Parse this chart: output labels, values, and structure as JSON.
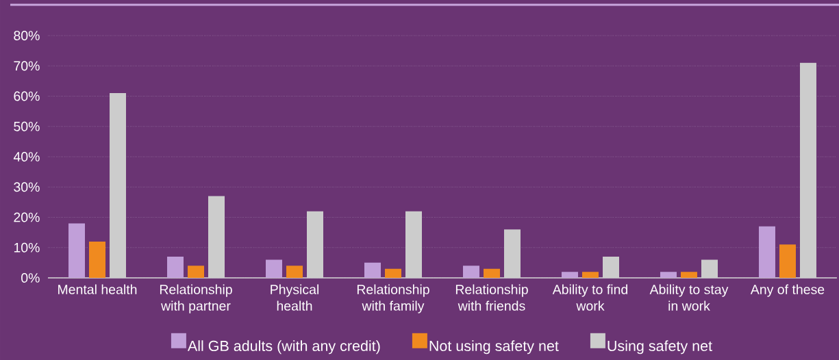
{
  "chart_data": {
    "type": "bar",
    "categories": [
      "Mental health",
      "Relationship with partner",
      "Physical health",
      "Relationship with family",
      "Relationship with friends",
      "Ability to find work",
      "Ability to stay in work",
      "Any of these"
    ],
    "series": [
      {
        "name": "All GB adults (with any credit)",
        "color": "#c19fd9",
        "values": [
          18,
          7,
          6,
          5,
          4,
          2,
          2,
          17
        ]
      },
      {
        "name": "Not using safety net",
        "color": "#f08a1f",
        "values": [
          12,
          4,
          4,
          3,
          3,
          2,
          2,
          11
        ]
      },
      {
        "name": "Using safety net",
        "color": "#cccccc",
        "values": [
          61,
          27,
          22,
          22,
          16,
          7,
          6,
          71
        ]
      }
    ],
    "ylim": [
      0,
      80
    ],
    "yticks": [
      {
        "value": 0,
        "label": "0%"
      },
      {
        "value": 10,
        "label": "10%"
      },
      {
        "value": 20,
        "label": "20%"
      },
      {
        "value": 30,
        "label": "30%"
      },
      {
        "value": 40,
        "label": "40%"
      },
      {
        "value": 50,
        "label": "50%"
      },
      {
        "value": 60,
        "label": "60%"
      },
      {
        "value": 70,
        "label": "70%"
      },
      {
        "value": 80,
        "label": "80%"
      }
    ],
    "grid": "y",
    "legend": "bottom"
  }
}
